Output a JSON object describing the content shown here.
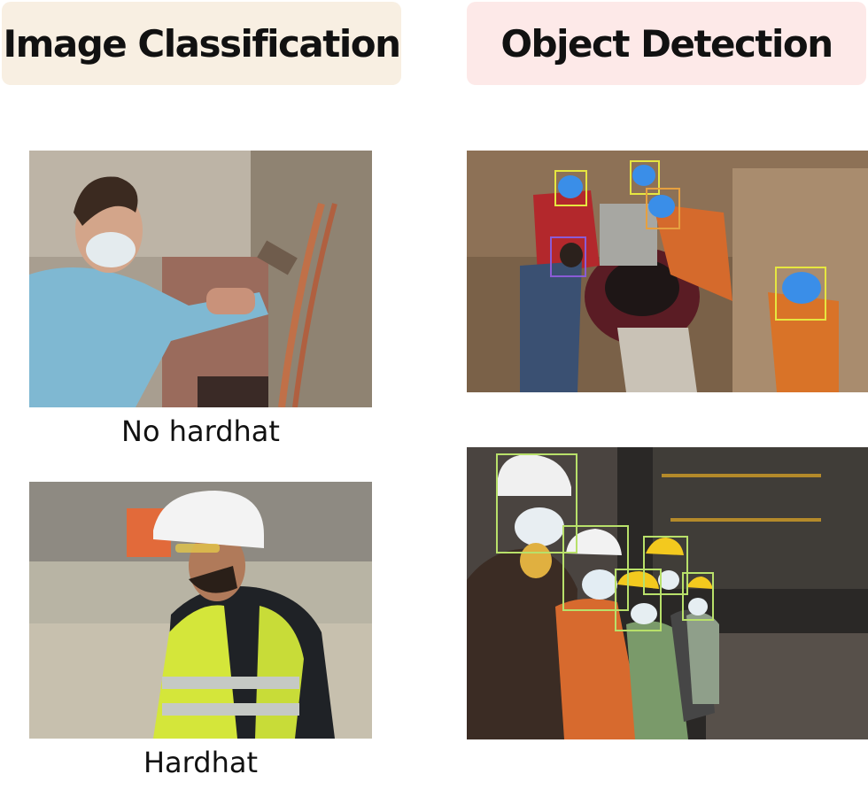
{
  "headers": {
    "left": "Image Classification",
    "right": "Object Detection"
  },
  "classification": {
    "images": [
      {
        "caption": "No hardhat"
      },
      {
        "caption": "Hardhat"
      }
    ]
  },
  "colors": {
    "header_left_bg": "#f8efe2",
    "header_right_bg": "#fde9e8",
    "box_hardhat": "#e6e640",
    "box_no_hardhat": "#8a5cd6",
    "box_mask": "#b8e06a"
  }
}
